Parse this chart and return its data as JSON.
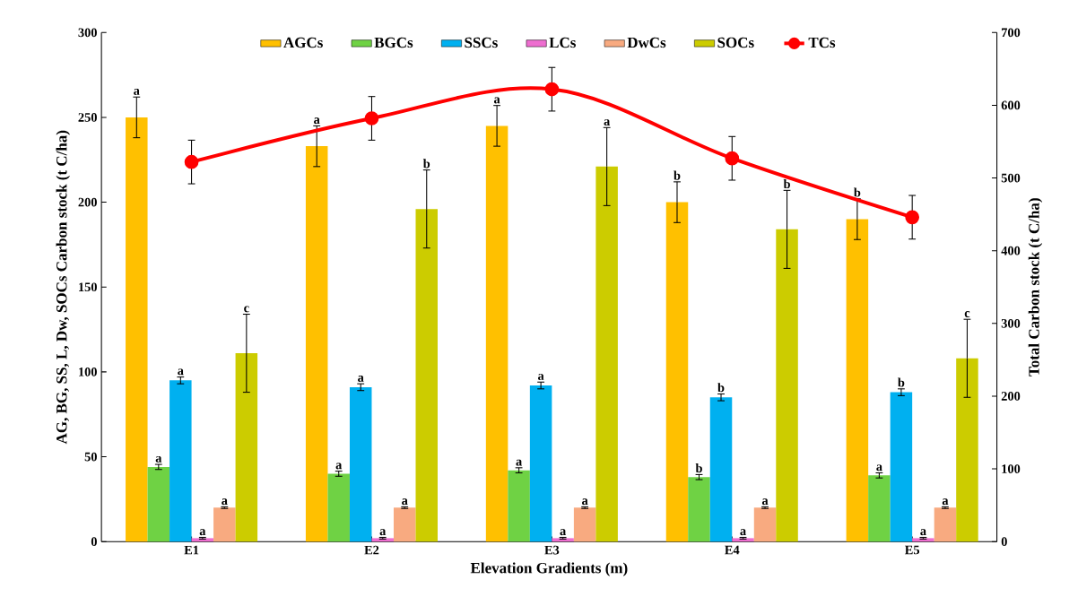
{
  "chart_data": {
    "type": "bar",
    "xlabel": "Elevation Gradients (m)",
    "ylabel": "AG, BG, SS, L, Dw, SOCs Carbon stock (t C/ha)",
    "y2label": "Total Carbon stock (t C/ha)",
    "categories": [
      "E1",
      "E2",
      "E3",
      "E4",
      "E5"
    ],
    "series": [
      {
        "name": "AGCs",
        "color": "#ffc000",
        "values": [
          250,
          233,
          245,
          200,
          190
        ],
        "errors": [
          12,
          12,
          12,
          12,
          12
        ],
        "value_labels": [
          "a",
          "a",
          "a",
          "b",
          "b"
        ]
      },
      {
        "name": "BGCs",
        "color": "#6fd244",
        "values": [
          44,
          40,
          42,
          38,
          39
        ],
        "errors": [
          1.5,
          1.5,
          1.5,
          1.5,
          1.5
        ],
        "value_labels": [
          "a",
          "a",
          "a",
          "b",
          "a"
        ]
      },
      {
        "name": "SSCs",
        "color": "#00b0f0",
        "values": [
          95,
          91,
          92,
          85,
          88
        ],
        "errors": [
          2,
          2,
          2,
          2,
          2
        ],
        "value_labels": [
          "a",
          "a",
          "a",
          "b",
          "b"
        ]
      },
      {
        "name": "LCs",
        "color": "#ee6ed0",
        "values": [
          2,
          2,
          2,
          2,
          2
        ],
        "errors": [
          0.5,
          0.5,
          0.5,
          0.5,
          0.5
        ],
        "value_labels": [
          "a",
          "a",
          "a",
          "a",
          "a"
        ]
      },
      {
        "name": "DwCs",
        "color": "#f8aa80",
        "values": [
          20,
          20,
          20,
          20,
          20
        ],
        "errors": [
          0.5,
          0.5,
          0.5,
          0.5,
          0.5
        ],
        "value_labels": [
          "a",
          "a",
          "a",
          "a",
          "a"
        ]
      },
      {
        "name": "SOCs",
        "color": "#cccc00",
        "values": [
          111,
          196,
          221,
          184,
          108
        ],
        "errors": [
          23,
          23,
          23,
          23,
          23
        ],
        "value_labels": [
          "c",
          "b",
          "a",
          "b",
          "c"
        ]
      },
      {
        "name": "TCs",
        "color": "#ff0000",
        "type": "line",
        "axis": "y2",
        "marker": "circle",
        "values": [
          522,
          582,
          622,
          527,
          446
        ],
        "errors": [
          30,
          30,
          30,
          30,
          30
        ]
      }
    ],
    "ylim": [
      0,
      300
    ],
    "yticks": [
      0,
      50,
      100,
      150,
      200,
      250,
      300
    ],
    "y2lim": [
      0,
      700
    ],
    "y2ticks": [
      0,
      100,
      200,
      300,
      400,
      500,
      600,
      700
    ],
    "legend": "top"
  }
}
